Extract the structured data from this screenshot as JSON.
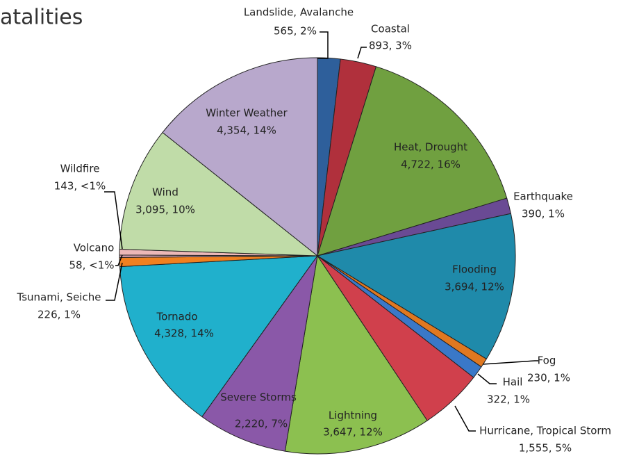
{
  "chart_data": {
    "type": "pie",
    "title": "atalities",
    "categories": [
      "Landslide, Avalanche",
      "Coastal",
      "Heat, Drought",
      "Earthquake",
      "Flooding",
      "Fog",
      "Hail",
      "Hurricane, Tropical Storm",
      "Lightning",
      "Severe Storms",
      "Tornado",
      "Tsunami, Seiche",
      "Volcano",
      "Wildfire",
      "Wind",
      "Winter Weather"
    ],
    "values": [
      565,
      893,
      4722,
      390,
      3694,
      230,
      322,
      1555,
      3647,
      2220,
      4328,
      226,
      58,
      143,
      3095,
      4354
    ],
    "value_labels": [
      "565, 2%",
      "893, 3%",
      "4,722, 16%",
      "390, 1%",
      "3,694, 12%",
      "230, 1%",
      "322, 1%",
      "1,555, 5%",
      "3,647, 12%",
      "2,220, 7%",
      "4,328, 14%",
      "226, 1%",
      "58, <1%",
      "143, <1%",
      "3,095, 10%",
      "4,354, 14%"
    ],
    "colors": [
      "#2e5f9b",
      "#b0303c",
      "#70a040",
      "#6a4a94",
      "#1f8aaa",
      "#e07820",
      "#3a78c8",
      "#d0404c",
      "#8cc050",
      "#8a58a8",
      "#20b0cc",
      "#f08020",
      "#d8a0b0",
      "#ecb8b8",
      "#c0dca8",
      "#b8a8cc"
    ]
  }
}
